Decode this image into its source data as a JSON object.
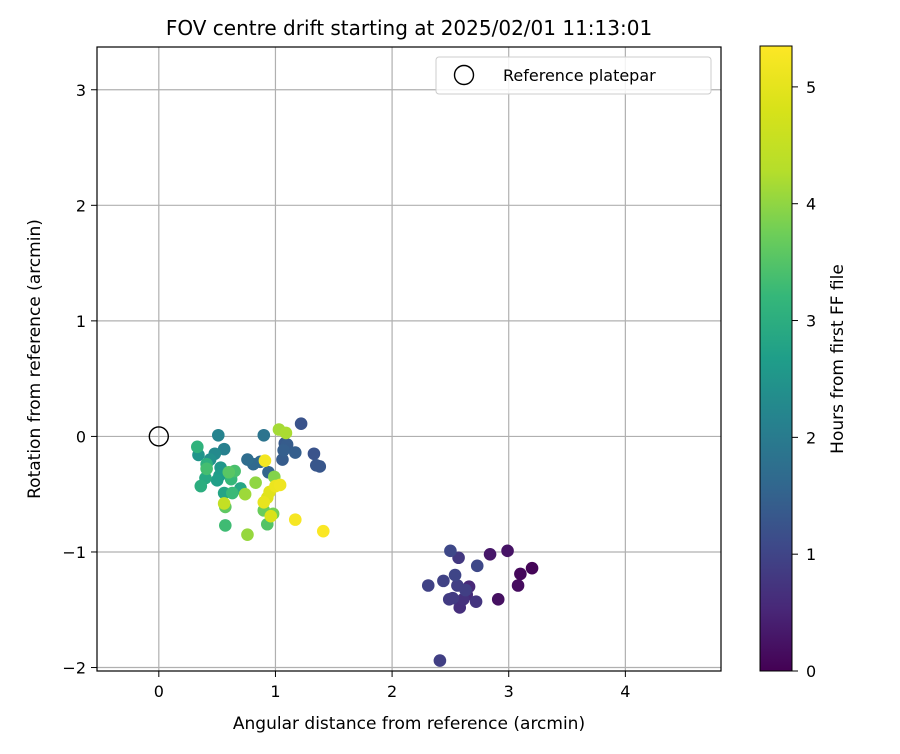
{
  "chart_data": {
    "type": "scatter",
    "title": "FOV centre drift starting at 2025/02/01 11:13:01",
    "xlabel": "Angular distance from reference (arcmin)",
    "ylabel": "Rotation from reference (arcmin)",
    "xlim": [
      -0.53,
      4.82
    ],
    "ylim": [
      -2.03,
      3.37
    ],
    "xticks": [
      0,
      1,
      2,
      3,
      4
    ],
    "yticks": [
      -2,
      -1,
      0,
      1,
      2,
      3
    ],
    "grid": true,
    "legend": {
      "position": "top-right",
      "entries": [
        {
          "label": "Reference platepar",
          "marker": "open-circle"
        }
      ]
    },
    "reference_point": {
      "x": 0,
      "y": 0
    },
    "colorbar": {
      "label": "Hours from first FF file",
      "min": 0,
      "max": 5.35,
      "ticks": [
        0,
        1,
        2,
        3,
        4,
        5
      ],
      "colormap": "viridis"
    },
    "points": [
      {
        "x": 3.2,
        "y": -1.14,
        "h": 0.05
      },
      {
        "x": 3.1,
        "y": -1.19,
        "h": 0.1
      },
      {
        "x": 3.08,
        "y": -1.29,
        "h": 0.15
      },
      {
        "x": 2.91,
        "y": -1.41,
        "h": 0.2
      },
      {
        "x": 2.99,
        "y": -0.99,
        "h": 0.25
      },
      {
        "x": 2.84,
        "y": -1.02,
        "h": 0.3
      },
      {
        "x": 2.66,
        "y": -1.3,
        "h": 0.55
      },
      {
        "x": 2.64,
        "y": -1.37,
        "h": 0.6
      },
      {
        "x": 2.58,
        "y": -1.48,
        "h": 0.65
      },
      {
        "x": 2.61,
        "y": -1.41,
        "h": 0.7
      },
      {
        "x": 2.72,
        "y": -1.43,
        "h": 0.75
      },
      {
        "x": 2.57,
        "y": -1.05,
        "h": 0.8
      },
      {
        "x": 2.49,
        "y": -1.41,
        "h": 0.85
      },
      {
        "x": 2.52,
        "y": -1.4,
        "h": 0.85
      },
      {
        "x": 2.56,
        "y": -1.29,
        "h": 0.9
      },
      {
        "x": 2.63,
        "y": -1.33,
        "h": 0.9
      },
      {
        "x": 2.41,
        "y": -1.94,
        "h": 0.9
      },
      {
        "x": 2.31,
        "y": -1.29,
        "h": 0.95
      },
      {
        "x": 2.44,
        "y": -1.25,
        "h": 0.95
      },
      {
        "x": 2.54,
        "y": -1.2,
        "h": 1.0
      },
      {
        "x": 2.5,
        "y": -0.99,
        "h": 1.05
      },
      {
        "x": 2.73,
        "y": -1.12,
        "h": 1.05
      },
      {
        "x": 1.22,
        "y": 0.11,
        "h": 1.25
      },
      {
        "x": 1.33,
        "y": -0.15,
        "h": 1.25
      },
      {
        "x": 1.38,
        "y": -0.26,
        "h": 1.3
      },
      {
        "x": 1.35,
        "y": -0.25,
        "h": 1.3
      },
      {
        "x": 1.08,
        "y": -0.06,
        "h": 1.35
      },
      {
        "x": 1.06,
        "y": -0.2,
        "h": 1.4
      },
      {
        "x": 1.1,
        "y": -0.07,
        "h": 1.4
      },
      {
        "x": 1.17,
        "y": -0.14,
        "h": 1.45
      },
      {
        "x": 1.07,
        "y": -0.12,
        "h": 1.45
      },
      {
        "x": 0.94,
        "y": -0.31,
        "h": 1.55
      },
      {
        "x": 0.87,
        "y": -0.22,
        "h": 1.6
      },
      {
        "x": 0.81,
        "y": -0.24,
        "h": 1.65
      },
      {
        "x": 0.76,
        "y": -0.2,
        "h": 1.7
      },
      {
        "x": 0.9,
        "y": 0.01,
        "h": 1.85
      },
      {
        "x": 0.56,
        "y": -0.11,
        "h": 2.1
      },
      {
        "x": 0.51,
        "y": 0.01,
        "h": 2.15
      },
      {
        "x": 0.48,
        "y": -0.15,
        "h": 2.3
      },
      {
        "x": 0.44,
        "y": -0.2,
        "h": 2.4
      },
      {
        "x": 0.34,
        "y": -0.16,
        "h": 2.5
      },
      {
        "x": 0.53,
        "y": -0.27,
        "h": 2.55
      },
      {
        "x": 0.52,
        "y": -0.34,
        "h": 2.65
      },
      {
        "x": 0.5,
        "y": -0.38,
        "h": 2.7
      },
      {
        "x": 0.56,
        "y": -0.49,
        "h": 2.8
      },
      {
        "x": 0.7,
        "y": -0.45,
        "h": 2.85
      },
      {
        "x": 0.4,
        "y": -0.36,
        "h": 2.9
      },
      {
        "x": 0.36,
        "y": -0.43,
        "h": 3.0
      },
      {
        "x": 0.41,
        "y": -0.24,
        "h": 3.05
      },
      {
        "x": 0.33,
        "y": -0.09,
        "h": 3.1
      },
      {
        "x": 0.62,
        "y": -0.37,
        "h": 3.2
      },
      {
        "x": 0.63,
        "y": -0.49,
        "h": 3.25
      },
      {
        "x": 0.57,
        "y": -0.77,
        "h": 3.3
      },
      {
        "x": 0.41,
        "y": -0.28,
        "h": 3.35
      },
      {
        "x": 0.65,
        "y": -0.3,
        "h": 3.4
      },
      {
        "x": 0.93,
        "y": -0.76,
        "h": 3.5
      },
      {
        "x": 0.6,
        "y": -0.31,
        "h": 3.55
      },
      {
        "x": 0.57,
        "y": -0.61,
        "h": 3.6
      },
      {
        "x": 0.9,
        "y": -0.64,
        "h": 3.7
      },
      {
        "x": 0.98,
        "y": -0.67,
        "h": 3.8
      },
      {
        "x": 0.99,
        "y": -0.35,
        "h": 3.9
      },
      {
        "x": 0.83,
        "y": -0.4,
        "h": 4.0
      },
      {
        "x": 0.76,
        "y": -0.85,
        "h": 4.05
      },
      {
        "x": 0.74,
        "y": -0.5,
        "h": 4.1
      },
      {
        "x": 1.03,
        "y": 0.06,
        "h": 4.15
      },
      {
        "x": 1.09,
        "y": 0.03,
        "h": 4.2
      },
      {
        "x": 0.56,
        "y": -0.58,
        "h": 4.5
      },
      {
        "x": 0.96,
        "y": -0.69,
        "h": 4.85
      },
      {
        "x": 0.93,
        "y": -0.53,
        "h": 4.9
      },
      {
        "x": 0.95,
        "y": -0.48,
        "h": 4.95
      },
      {
        "x": 0.9,
        "y": -0.57,
        "h": 5.05
      },
      {
        "x": 1.0,
        "y": -0.43,
        "h": 5.1
      },
      {
        "x": 1.04,
        "y": -0.42,
        "h": 5.15
      },
      {
        "x": 0.91,
        "y": -0.21,
        "h": 5.2
      },
      {
        "x": 1.17,
        "y": -0.72,
        "h": 5.25
      },
      {
        "x": 1.41,
        "y": -0.82,
        "h": 5.3
      }
    ]
  }
}
